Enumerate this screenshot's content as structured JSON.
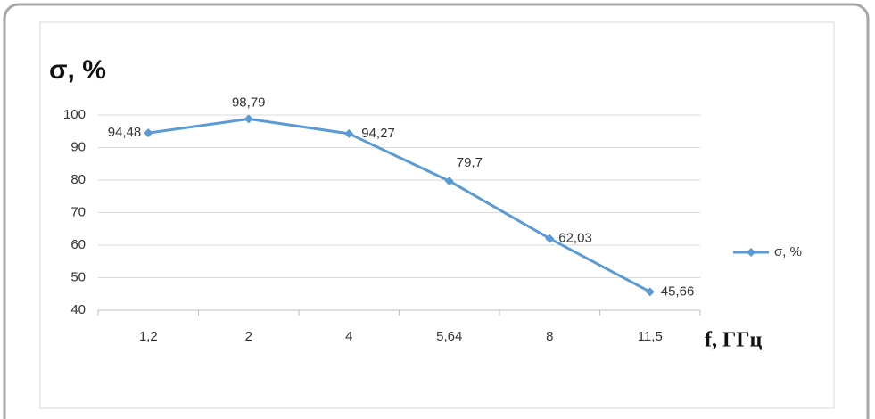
{
  "chart_data": {
    "type": "line",
    "y_label": "σ, %",
    "x_label": "f, ГГц",
    "categories": [
      "1,2",
      "2",
      "4",
      "5,64",
      "8",
      "11,5"
    ],
    "series": [
      {
        "name": "σ, %",
        "color": "#5b9bd5",
        "values": [
          94.48,
          98.79,
          94.27,
          79.7,
          62.03,
          45.66
        ],
        "value_labels": [
          "94,48",
          "98,79",
          "94,27",
          "79,7",
          "62,03",
          "45,66"
        ]
      }
    ],
    "ylim": [
      40,
      100
    ],
    "yticks": [
      40,
      50,
      60,
      70,
      80,
      90,
      100
    ],
    "grid": true,
    "legend": "right"
  }
}
